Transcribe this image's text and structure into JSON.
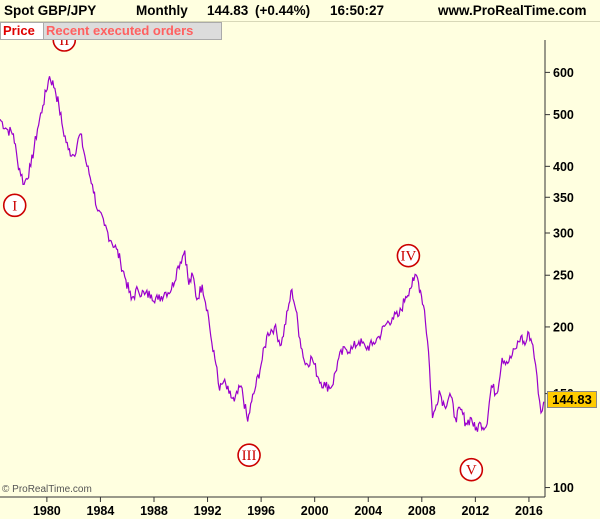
{
  "header": {
    "instrument": "Spot GBP/JPY",
    "period": "Monthly",
    "last_price": "144.83",
    "change": "(+0.44%)",
    "time": "16:50:27",
    "site": "www.ProRealTime.com"
  },
  "tabs": {
    "price": "Price",
    "orders": "Recent executed orders"
  },
  "copyright": "© ProRealTime.com",
  "price_badge": "144.83",
  "colors": {
    "line": "#9900cc",
    "background": "#ffffe0",
    "wave_labels": "#cc0000",
    "badge": "#ffcc00"
  },
  "chart_data": {
    "type": "line",
    "title": "Spot GBP/JPY Monthly",
    "yscale": "log",
    "ylim": [
      96,
      690
    ],
    "xlim": [
      1976.5,
      2017.2
    ],
    "yticks": [
      100,
      150,
      200,
      250,
      300,
      350,
      400,
      500,
      600
    ],
    "xticks": [
      1980,
      1984,
      1988,
      1992,
      1996,
      2000,
      2004,
      2008,
      2012,
      2016
    ],
    "series": [
      {
        "x": [
          1976.5,
          1977.0,
          1977.5,
          1977.8,
          1978.3,
          1978.8,
          1979.3,
          1979.7,
          1980.2,
          1980.6,
          1980.9,
          1981.2,
          1981.6,
          1982.0,
          1982.5,
          1983.0,
          1983.4,
          1983.8,
          1984.3,
          1984.8,
          1985.2,
          1985.5,
          1985.9,
          1986.3,
          1986.8,
          1987.3,
          1987.8,
          1988.3,
          1988.8,
          1989.3,
          1989.8,
          1990.3,
          1990.6,
          1990.9,
          1991.2,
          1991.6,
          1992.0,
          1992.4,
          1992.7,
          1992.9,
          1993.2,
          1993.6,
          1994.0,
          1994.5,
          1995.0,
          1995.3,
          1995.6,
          1996.0,
          1996.5,
          1997.0,
          1997.5,
          1998.0,
          1998.3,
          1998.6,
          1998.9,
          1999.3,
          1999.8,
          2000.3,
          2000.8,
          2001.3,
          2001.8,
          2002.3,
          2002.8,
          2003.3,
          2003.8,
          2004.3,
          2004.8,
          2005.3,
          2005.8,
          2006.3,
          2006.8,
          2007.1,
          2007.4,
          2007.6,
          2007.9,
          2008.2,
          2008.5,
          2008.8,
          2009.0,
          2009.3,
          2009.7,
          2010.1,
          2010.5,
          2010.9,
          2011.3,
          2011.7,
          2012.0,
          2012.4,
          2012.8,
          2013.2,
          2013.6,
          2014.0,
          2014.5,
          2015.0,
          2015.4,
          2015.7,
          2016.0,
          2016.3,
          2016.5,
          2016.7,
          2016.9,
          2017.1
        ],
        "y": [
          490,
          470,
          460,
          410,
          370,
          400,
          470,
          520,
          590,
          560,
          520,
          470,
          430,
          420,
          460,
          400,
          370,
          330,
          310,
          290,
          280,
          265,
          245,
          225,
          235,
          230,
          230,
          225,
          232,
          235,
          260,
          278,
          240,
          250,
          225,
          240,
          215,
          180,
          168,
          152,
          158,
          150,
          145,
          155,
          133,
          145,
          155,
          170,
          195,
          200,
          185,
          215,
          235,
          215,
          190,
          170,
          175,
          160,
          155,
          155,
          175,
          182,
          182,
          188,
          183,
          185,
          192,
          202,
          208,
          210,
          228,
          236,
          244,
          250,
          234,
          215,
          180,
          135,
          140,
          152,
          142,
          150,
          135,
          140,
          132,
          135,
          128,
          132,
          130,
          155,
          150,
          175,
          172,
          182,
          192,
          185,
          195,
          185,
          170,
          150,
          138,
          144.83
        ]
      }
    ],
    "annotations": [
      {
        "label": "I",
        "x": 1977.6,
        "y": 338
      },
      {
        "label": "II",
        "x": 1981.3,
        "y": 690
      },
      {
        "label": "III",
        "x": 1995.1,
        "y": 115
      },
      {
        "label": "IV",
        "x": 2007.0,
        "y": 272
      },
      {
        "label": "V",
        "x": 2011.7,
        "y": 108
      }
    ],
    "last_value": 144.83
  }
}
